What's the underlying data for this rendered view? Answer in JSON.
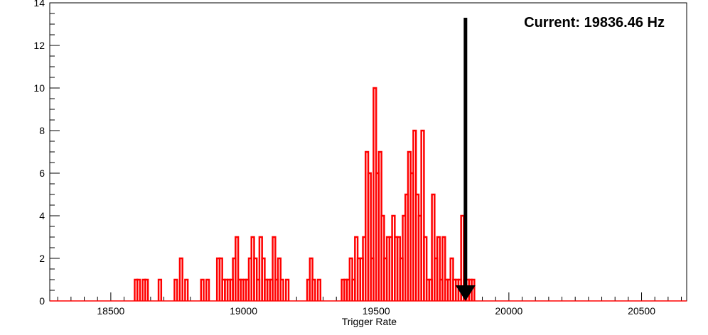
{
  "chart_data": {
    "type": "histogram",
    "title": "",
    "xlabel": "Trigger Rate",
    "ylabel": "",
    "xlim": [
      18270,
      20670
    ],
    "ylim": [
      0,
      14
    ],
    "x_ticks": [
      18500,
      19000,
      19500,
      20000,
      20500
    ],
    "y_ticks": [
      0,
      2,
      4,
      6,
      8,
      10,
      12,
      14
    ],
    "line_color": "#ff0000",
    "series": [
      {
        "bins": [
          {
            "x": 18595,
            "y": 1
          },
          {
            "x": 18605,
            "y": 1
          },
          {
            "x": 18625,
            "y": 1
          },
          {
            "x": 18635,
            "y": 1
          },
          {
            "x": 18685,
            "y": 1
          },
          {
            "x": 18745,
            "y": 1
          },
          {
            "x": 18765,
            "y": 2
          },
          {
            "x": 18785,
            "y": 1
          },
          {
            "x": 18845,
            "y": 1
          },
          {
            "x": 18865,
            "y": 1
          },
          {
            "x": 18905,
            "y": 2
          },
          {
            "x": 18915,
            "y": 2
          },
          {
            "x": 18925,
            "y": 1
          },
          {
            "x": 18935,
            "y": 1
          },
          {
            "x": 18945,
            "y": 1
          },
          {
            "x": 18955,
            "y": 1
          },
          {
            "x": 18965,
            "y": 2
          },
          {
            "x": 18975,
            "y": 3
          },
          {
            "x": 18985,
            "y": 1
          },
          {
            "x": 18995,
            "y": 1
          },
          {
            "x": 19005,
            "y": 1
          },
          {
            "x": 19015,
            "y": 1
          },
          {
            "x": 19025,
            "y": 2
          },
          {
            "x": 19035,
            "y": 3
          },
          {
            "x": 19045,
            "y": 2
          },
          {
            "x": 19055,
            "y": 1
          },
          {
            "x": 19065,
            "y": 3
          },
          {
            "x": 19075,
            "y": 2
          },
          {
            "x": 19085,
            "y": 1
          },
          {
            "x": 19095,
            "y": 1
          },
          {
            "x": 19105,
            "y": 1
          },
          {
            "x": 19115,
            "y": 3
          },
          {
            "x": 19125,
            "y": 1
          },
          {
            "x": 19135,
            "y": 2
          },
          {
            "x": 19145,
            "y": 1
          },
          {
            "x": 19165,
            "y": 1
          },
          {
            "x": 19245,
            "y": 1
          },
          {
            "x": 19255,
            "y": 2
          },
          {
            "x": 19265,
            "y": 1
          },
          {
            "x": 19285,
            "y": 1
          },
          {
            "x": 19375,
            "y": 1
          },
          {
            "x": 19385,
            "y": 1
          },
          {
            "x": 19395,
            "y": 1
          },
          {
            "x": 19405,
            "y": 2
          },
          {
            "x": 19415,
            "y": 1
          },
          {
            "x": 19425,
            "y": 3
          },
          {
            "x": 19435,
            "y": 2
          },
          {
            "x": 19445,
            "y": 2
          },
          {
            "x": 19455,
            "y": 3
          },
          {
            "x": 19465,
            "y": 7
          },
          {
            "x": 19475,
            "y": 6
          },
          {
            "x": 19485,
            "y": 2
          },
          {
            "x": 19495,
            "y": 10
          },
          {
            "x": 19505,
            "y": 6
          },
          {
            "x": 19515,
            "y": 7
          },
          {
            "x": 19525,
            "y": 4
          },
          {
            "x": 19535,
            "y": 2
          },
          {
            "x": 19545,
            "y": 3
          },
          {
            "x": 19555,
            "y": 3
          },
          {
            "x": 19565,
            "y": 4
          },
          {
            "x": 19575,
            "y": 3
          },
          {
            "x": 19585,
            "y": 3
          },
          {
            "x": 19595,
            "y": 2
          },
          {
            "x": 19605,
            "y": 4
          },
          {
            "x": 19615,
            "y": 5
          },
          {
            "x": 19625,
            "y": 7
          },
          {
            "x": 19635,
            "y": 6
          },
          {
            "x": 19645,
            "y": 8
          },
          {
            "x": 19655,
            "y": 5
          },
          {
            "x": 19665,
            "y": 4
          },
          {
            "x": 19675,
            "y": 8
          },
          {
            "x": 19685,
            "y": 3
          },
          {
            "x": 19695,
            "y": 1
          },
          {
            "x": 19705,
            "y": 1
          },
          {
            "x": 19715,
            "y": 5
          },
          {
            "x": 19725,
            "y": 2
          },
          {
            "x": 19735,
            "y": 3
          },
          {
            "x": 19745,
            "y": 1
          },
          {
            "x": 19755,
            "y": 3
          },
          {
            "x": 19765,
            "y": 1
          },
          {
            "x": 19775,
            "y": 1
          },
          {
            "x": 19785,
            "y": 2
          },
          {
            "x": 19795,
            "y": 1
          },
          {
            "x": 19805,
            "y": 1
          },
          {
            "x": 19815,
            "y": 1
          },
          {
            "x": 19825,
            "y": 4
          },
          {
            "x": 19835,
            "y": 1
          },
          {
            "x": 19845,
            "y": 1
          },
          {
            "x": 19855,
            "y": 1
          },
          {
            "x": 19865,
            "y": 1
          }
        ]
      }
    ],
    "annotation": {
      "text": "Current: 19836.46 Hz",
      "value": 19836.46,
      "arrow_color": "#000000"
    },
    "grid": false
  }
}
